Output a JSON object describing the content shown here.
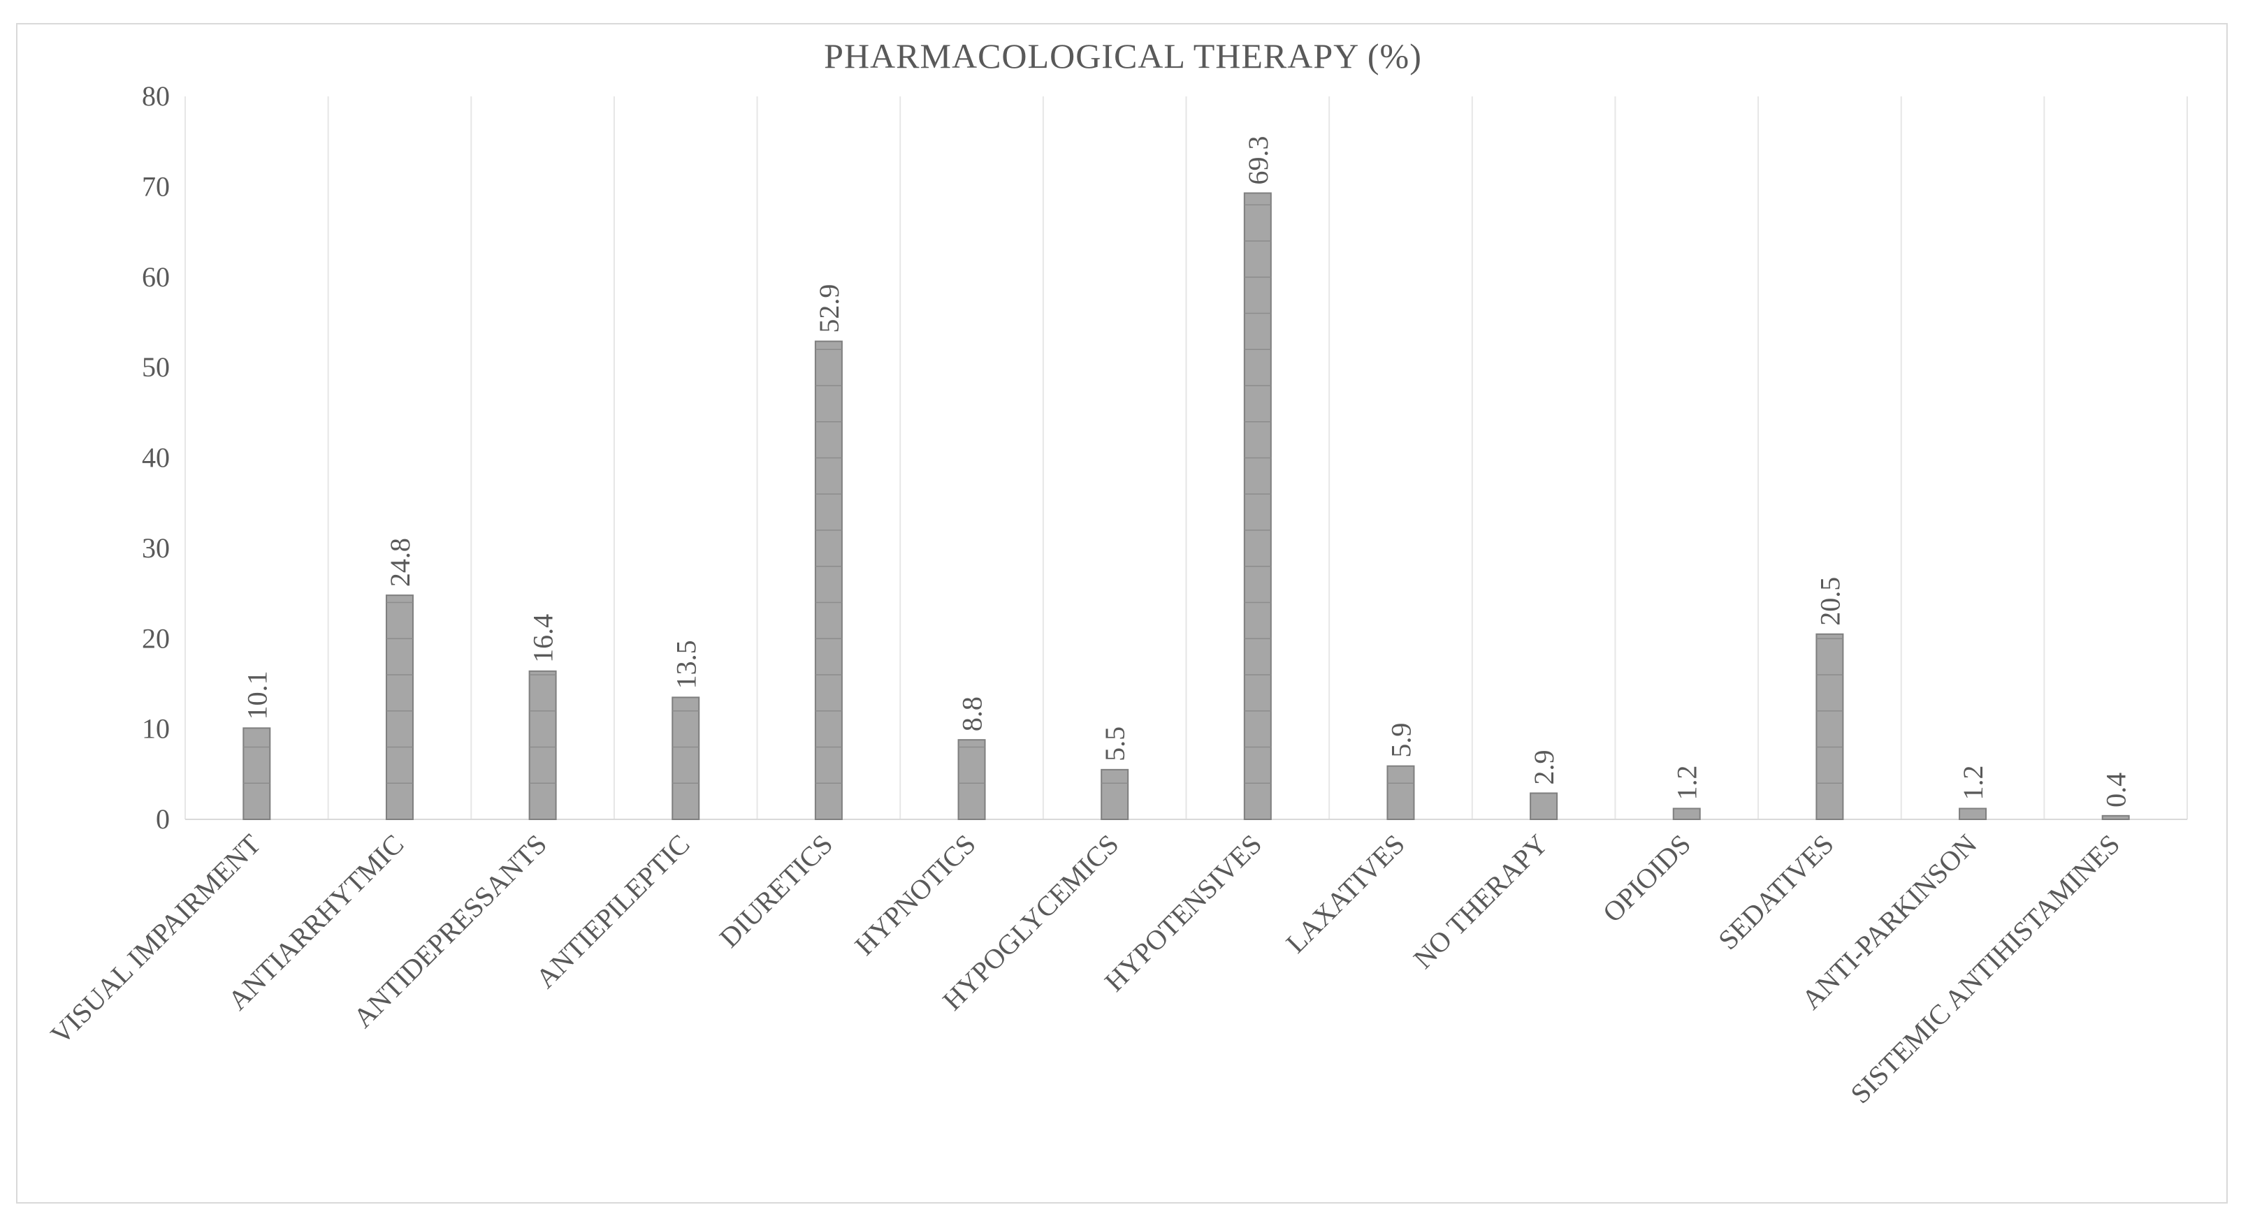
{
  "chart_data": {
    "type": "bar",
    "title": "PHARMACOLOGICAL THERAPY (%)",
    "xlabel": "",
    "ylabel": "",
    "ylim": [
      0,
      80
    ],
    "yticks": [
      0,
      10,
      20,
      30,
      40,
      50,
      60,
      70,
      80
    ],
    "grid": "vertical category dividers",
    "legend": "none",
    "bar_color": "#a6a6a6",
    "categories": [
      "VISUAL IMPAIRMENT",
      "ANTIARRHYTMIC",
      "ANTIDEPRESSANTS",
      "ANTIEPILEPTIC",
      "DIURETICS",
      "HYPNOTICS",
      "HYPOGLYCEMICS",
      "HYPOTENSIVES",
      "LAXATIVES",
      "NO THERAPY",
      "OPIOIDS",
      "SEDATIVES",
      "ANTI-PARKINSON",
      "SISTEMIC ANTIHISTAMINES"
    ],
    "values": [
      10.1,
      24.8,
      16.4,
      13.5,
      52.9,
      8.8,
      5.5,
      69.3,
      5.9,
      2.9,
      1.2,
      20.5,
      1.2,
      0.4
    ],
    "data_labels": [
      "10.1",
      "24.8",
      "16.4",
      "13.5",
      "52.9",
      "8.8",
      "5.5",
      "69.3",
      "5.9",
      "2.9",
      "1.2",
      "20.5",
      "1.2",
      "0.4"
    ]
  }
}
